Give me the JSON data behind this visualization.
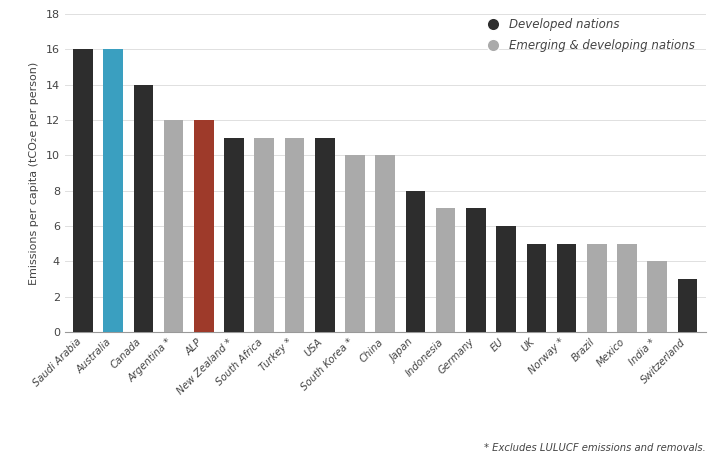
{
  "categories": [
    "Saudi Arabia",
    "Australia",
    "Canada",
    "Argentina *",
    "ALP",
    "New Zealand *",
    "South Africa",
    "Turkey *",
    "USA",
    "South Korea *",
    "China",
    "Japan",
    "Indonesia",
    "Germany",
    "EU",
    "UK",
    "Norway *",
    "Brazil",
    "Mexico",
    "India *",
    "Switzerland"
  ],
  "values": [
    16,
    16,
    14,
    12,
    12,
    11,
    11,
    11,
    11,
    10,
    10,
    8,
    7,
    7,
    6,
    5,
    5,
    5,
    5,
    4,
    3
  ],
  "bar_colors": [
    "#2d2d2d",
    "#3a9fc0",
    "#2d2d2d",
    "#aaaaaa",
    "#9e3a2a",
    "#2d2d2d",
    "#aaaaaa",
    "#aaaaaa",
    "#2d2d2d",
    "#aaaaaa",
    "#aaaaaa",
    "#2d2d2d",
    "#aaaaaa",
    "#2d2d2d",
    "#2d2d2d",
    "#2d2d2d",
    "#2d2d2d",
    "#aaaaaa",
    "#aaaaaa",
    "#aaaaaa",
    "#2d2d2d"
  ],
  "ylabel": "Emissions per capita (tCO₂e per person)",
  "ylim": [
    0,
    18
  ],
  "yticks": [
    0,
    2,
    4,
    6,
    8,
    10,
    12,
    14,
    16,
    18
  ],
  "legend_developed_color": "#2d2d2d",
  "legend_emerging_color": "#aaaaaa",
  "legend_developed_label": "Developed nations",
  "legend_emerging_label": "Emerging & developing nations",
  "footnote": "* Excludes LULUCF emissions and removals.",
  "background_color": "#ffffff",
  "bar_width": 0.65
}
